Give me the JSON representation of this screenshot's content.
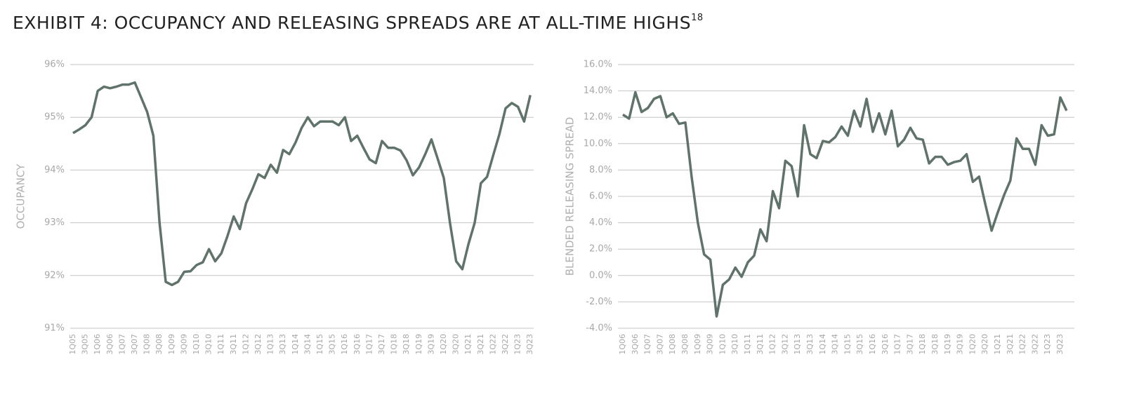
{
  "header": {
    "title": "EXHIBIT 4: OCCUPANCY AND RELEASING SPREADS ARE AT ALL-TIME HIGHS",
    "title_note": "18"
  },
  "chart_data": [
    {
      "type": "line",
      "y_label": "OCCUPANCY",
      "categories": [
        "1Q05",
        null,
        "3Q05",
        null,
        "1Q06",
        null,
        "3Q06",
        null,
        "1Q07",
        null,
        "3Q07",
        null,
        "1Q08",
        null,
        "3Q08",
        null,
        "1Q09",
        null,
        "3Q09",
        null,
        "1Q10",
        null,
        "3Q10",
        null,
        "1Q11",
        null,
        "3Q11",
        null,
        "1Q12",
        null,
        "3Q12",
        null,
        "1Q13",
        null,
        "3Q13",
        null,
        "1Q14",
        null,
        "3Q14",
        null,
        "1Q15",
        null,
        "3Q15",
        null,
        "1Q16",
        null,
        "3Q16",
        null,
        "1Q17",
        null,
        "3Q17",
        null,
        "1Q18",
        null,
        "3Q18",
        null,
        "1Q19",
        null,
        "3Q19",
        null,
        "1Q20",
        null,
        "3Q20",
        null,
        "1Q21",
        null,
        "3Q21",
        null,
        "1Q22",
        null,
        "3Q22",
        null,
        "1Q23",
        null,
        "3Q23"
      ],
      "series": [
        {
          "name": "Occupancy",
          "color": "#5f736a",
          "values": [
            94.7,
            94.77,
            94.85,
            95.0,
            95.5,
            95.58,
            95.55,
            95.58,
            95.62,
            95.62,
            95.66,
            95.38,
            95.1,
            94.65,
            93.0,
            91.88,
            91.82,
            91.88,
            92.07,
            92.08,
            92.2,
            92.25,
            92.5,
            92.27,
            92.42,
            92.75,
            93.12,
            92.88,
            93.37,
            93.63,
            93.92,
            93.85,
            94.1,
            93.95,
            94.38,
            94.3,
            94.52,
            94.8,
            95.0,
            94.83,
            94.92,
            94.92,
            94.92,
            94.85,
            95.0,
            94.55,
            94.65,
            94.42,
            94.2,
            94.13,
            94.55,
            94.42,
            94.42,
            94.37,
            94.18,
            93.9,
            94.05,
            94.3,
            94.58,
            94.22,
            93.85,
            93.0,
            92.27,
            92.12,
            92.6,
            93.0,
            93.75,
            93.87,
            94.28,
            94.68,
            95.17,
            95.27,
            95.2,
            94.92,
            95.42
          ]
        }
      ],
      "ylim": [
        91,
        96
      ],
      "yticks": [
        {
          "value": 91,
          "label": "91%"
        },
        {
          "value": 92,
          "label": "92%"
        },
        {
          "value": 93,
          "label": "93%"
        },
        {
          "value": 94,
          "label": "94%"
        },
        {
          "value": 95,
          "label": "95%"
        },
        {
          "value": 96,
          "label": "96%"
        }
      ],
      "grid": true
    },
    {
      "type": "line",
      "y_label": "BLENDED RELEASING SPREAD",
      "categories": [
        "1Q06",
        null,
        "3Q06",
        null,
        "1Q07",
        null,
        "3Q07",
        null,
        "1Q08",
        null,
        "3Q08",
        null,
        "1Q09",
        null,
        "3Q09",
        null,
        "1Q10",
        null,
        "3Q10",
        null,
        "1Q11",
        null,
        "3Q11",
        null,
        "1Q12",
        null,
        "3Q12",
        null,
        "1Q13",
        null,
        "3Q13",
        null,
        "1Q14",
        null,
        "3Q14",
        null,
        "1Q15",
        null,
        "3Q15",
        null,
        "1Q16",
        null,
        "3Q16",
        null,
        "1Q17",
        null,
        "3Q17",
        null,
        "1Q18",
        null,
        "3Q18",
        null,
        "1Q19",
        null,
        "3Q19",
        null,
        "1Q20",
        null,
        "3Q20",
        null,
        "1Q21",
        null,
        "3Q21",
        null,
        "1Q22",
        null,
        "3Q22",
        null,
        "1Q23",
        null,
        "3Q23",
        null
      ],
      "series": [
        {
          "name": "Blended Releasing Spread",
          "color": "#5f736a",
          "values": [
            12.2,
            11.9,
            13.9,
            12.4,
            12.7,
            13.4,
            13.6,
            12.0,
            12.3,
            11.5,
            11.6,
            7.5,
            4.0,
            1.6,
            1.2,
            -3.1,
            -0.7,
            -0.3,
            0.6,
            -0.1,
            1.0,
            1.5,
            3.5,
            2.6,
            6.4,
            5.1,
            8.7,
            8.3,
            6.0,
            11.4,
            9.2,
            8.9,
            10.2,
            10.1,
            10.5,
            11.3,
            10.6,
            12.5,
            11.3,
            13.4,
            10.9,
            12.3,
            10.7,
            12.5,
            9.8,
            10.3,
            11.2,
            10.4,
            10.3,
            8.5,
            9.0,
            9.0,
            8.4,
            8.6,
            8.7,
            9.2,
            7.1,
            7.5,
            5.4,
            3.4,
            4.8,
            6.1,
            7.2,
            10.4,
            9.6,
            9.6,
            8.4,
            11.4,
            10.6,
            10.7,
            13.5,
            12.5
          ]
        }
      ],
      "ylim": [
        -4,
        16
      ],
      "yticks": [
        {
          "value": -4,
          "label": "-4.0%"
        },
        {
          "value": -2,
          "label": "-2.0%"
        },
        {
          "value": 0,
          "label": "0.0%"
        },
        {
          "value": 2,
          "label": "2.0%"
        },
        {
          "value": 4,
          "label": "4.0%"
        },
        {
          "value": 6,
          "label": "6.0%"
        },
        {
          "value": 8,
          "label": "8.0%"
        },
        {
          "value": 10,
          "label": "10.0%"
        },
        {
          "value": 12,
          "label": "12.0%"
        },
        {
          "value": 14,
          "label": "14.0%"
        },
        {
          "value": 16,
          "label": "16.0%"
        }
      ],
      "grid": true
    }
  ]
}
